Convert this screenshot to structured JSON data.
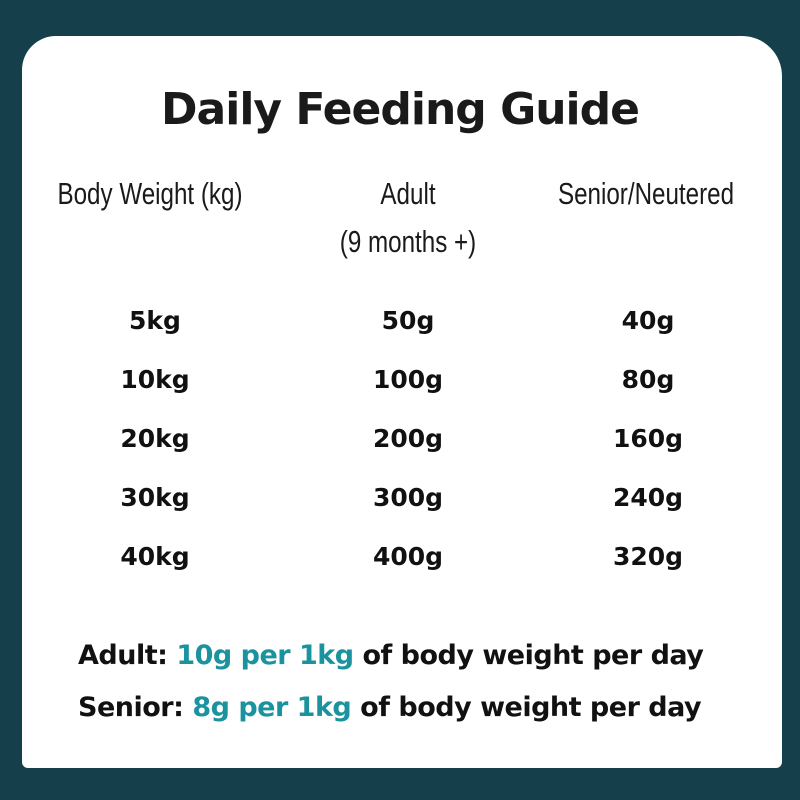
{
  "title": "Daily Feeding Guide",
  "colors": {
    "background": "#163f4c",
    "accent": "#1a939f"
  },
  "table": {
    "headers": [
      {
        "line1": "Body Weight (kg)",
        "line2": ""
      },
      {
        "line1": "Adult",
        "line2": "(9 months +)"
      },
      {
        "line1": "Senior/Neutered",
        "line2": ""
      }
    ],
    "rows": [
      [
        "5kg",
        "50g",
        "40g"
      ],
      [
        "10kg",
        "100g",
        "80g"
      ],
      [
        "20kg",
        "200g",
        "160g"
      ],
      [
        "30kg",
        "300g",
        "240g"
      ],
      [
        "40kg",
        "400g",
        "320g"
      ]
    ]
  },
  "notes": [
    {
      "label": "Adult:",
      "highlight": "10g per 1kg",
      "rest": "of body weight per day"
    },
    {
      "label": "Senior:",
      "highlight": "8g per 1kg",
      "rest": "of body weight per day"
    }
  ]
}
